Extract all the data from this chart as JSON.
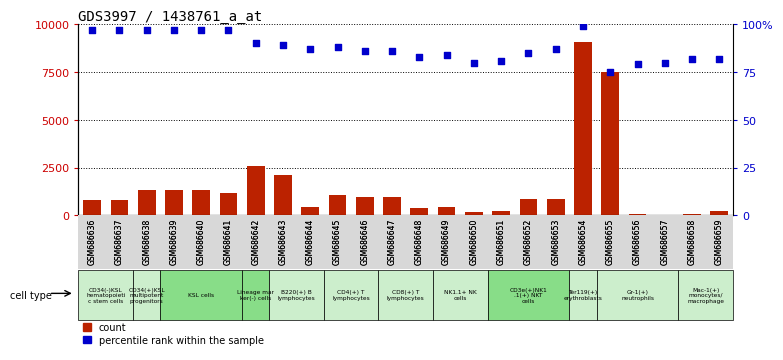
{
  "title": "GDS3997 / 1438761_a_at",
  "gsm_labels": [
    "GSM686636",
    "GSM686637",
    "GSM686638",
    "GSM686639",
    "GSM686640",
    "GSM686641",
    "GSM686642",
    "GSM686643",
    "GSM686644",
    "GSM686645",
    "GSM686646",
    "GSM686647",
    "GSM686648",
    "GSM686649",
    "GSM686650",
    "GSM686651",
    "GSM686652",
    "GSM686653",
    "GSM686654",
    "GSM686655",
    "GSM686656",
    "GSM686657",
    "GSM686658",
    "GSM686659"
  ],
  "counts": [
    800,
    800,
    1350,
    1350,
    1350,
    1150,
    2600,
    2100,
    450,
    1050,
    950,
    950,
    380,
    420,
    180,
    220,
    850,
    850,
    9100,
    7500,
    80,
    40,
    80,
    250
  ],
  "percentiles": [
    97,
    97,
    97,
    97,
    97,
    97,
    90,
    89,
    87,
    88,
    86,
    86,
    83,
    84,
    80,
    81,
    85,
    87,
    99,
    75,
    79,
    80,
    82,
    82
  ],
  "groups": [
    {
      "label": "CD34(-)KSL\nhematopoieti\nc stem cells",
      "indices": [
        0,
        1
      ],
      "color": "#cceecc"
    },
    {
      "label": "CD34(+)KSL\nmultipotent\nprogenitors",
      "indices": [
        2
      ],
      "color": "#cceecc"
    },
    {
      "label": "KSL cells",
      "indices": [
        3,
        4,
        5
      ],
      "color": "#88dd88"
    },
    {
      "label": "Lineage mar\nker(-) cells",
      "indices": [
        6
      ],
      "color": "#88dd88"
    },
    {
      "label": "B220(+) B\nlymphocytes",
      "indices": [
        7,
        8
      ],
      "color": "#cceecc"
    },
    {
      "label": "CD4(+) T\nlymphocytes",
      "indices": [
        9,
        10
      ],
      "color": "#cceecc"
    },
    {
      "label": "CD8(+) T\nlymphocytes",
      "indices": [
        11,
        12
      ],
      "color": "#cceecc"
    },
    {
      "label": "NK1.1+ NK\ncells",
      "indices": [
        13,
        14
      ],
      "color": "#cceecc"
    },
    {
      "label": "CD3e(+)NK1\n.1(+) NKT\ncells",
      "indices": [
        15,
        16,
        17
      ],
      "color": "#88dd88"
    },
    {
      "label": "Ter119(+)\nerythroblasts",
      "indices": [
        18
      ],
      "color": "#cceecc"
    },
    {
      "label": "Gr-1(+)\nneutrophils",
      "indices": [
        19,
        20,
        21
      ],
      "color": "#cceecc"
    },
    {
      "label": "Mac-1(+)\nmonocytes/\nmacrophage",
      "indices": [
        22,
        23
      ],
      "color": "#cceecc"
    }
  ],
  "bar_color": "#bb2200",
  "dot_color": "#0000cc",
  "ylim_left": [
    0,
    10000
  ],
  "ylim_right": [
    0,
    100
  ],
  "yticks_left": [
    0,
    2500,
    5000,
    7500,
    10000
  ],
  "yticks_right": [
    0,
    25,
    50,
    75,
    100
  ],
  "ytick_labels_left": [
    "0",
    "2500",
    "5000",
    "7500",
    "10000"
  ],
  "ytick_labels_right": [
    "0",
    "25",
    "50",
    "75",
    "100%"
  ],
  "cell_type_label": "cell type",
  "legend_count": "count",
  "legend_percentile": "percentile rank within the sample"
}
